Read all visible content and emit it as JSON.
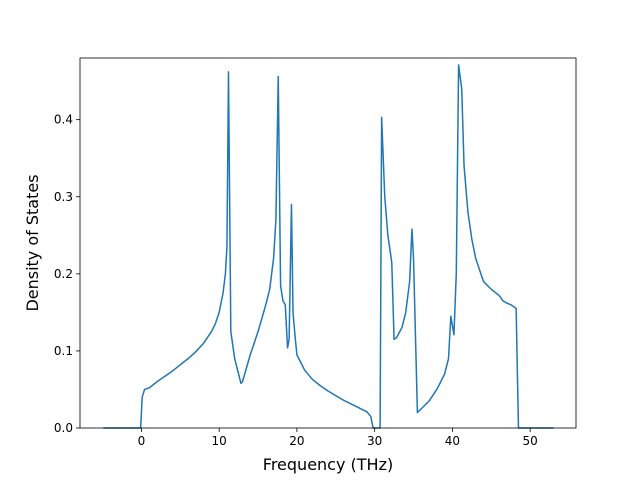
{
  "chart_data": {
    "type": "line",
    "title": "",
    "xlabel": "Frequency (THz)",
    "ylabel": "Density of States",
    "xlim": [
      -7.9,
      55.9
    ],
    "ylim": [
      0,
      0.48
    ],
    "grid": false,
    "legend": "none",
    "line_color": "#1f77b4",
    "x_ticks": [
      0,
      10,
      20,
      30,
      40,
      50
    ],
    "x_tick_labels": [
      "0",
      "10",
      "20",
      "30",
      "40",
      "50"
    ],
    "y_ticks": [
      0.0,
      0.1,
      0.2,
      0.3,
      0.4
    ],
    "y_tick_labels": [
      "0.0",
      "0.1",
      "0.2",
      "0.3",
      "0.4"
    ],
    "series": [
      {
        "x": [
          -4.8,
          -0.1,
          0.1,
          0.4,
          1.0,
          2.0,
          3.0,
          4.0,
          5.0,
          6.0,
          7.0,
          8.0,
          9.0,
          9.5,
          10.0,
          10.5,
          10.8,
          11.0,
          11.2,
          11.5,
          12.0,
          12.5,
          12.8,
          13.0,
          14.0,
          15.0,
          16.0,
          16.5,
          17.0,
          17.3,
          17.6,
          17.9,
          18.2,
          18.5,
          18.8,
          19.0,
          19.3,
          19.5,
          19.8,
          20.0,
          20.5,
          21.0,
          22.0,
          23.0,
          24.0,
          25.0,
          26.0,
          27.0,
          28.0,
          29.0,
          29.5,
          29.8,
          30.7,
          30.9,
          31.3,
          31.7,
          32.2,
          32.5,
          32.8,
          33.5,
          34.0,
          34.5,
          34.8,
          35.0,
          35.3,
          35.5,
          36.0,
          37.0,
          38.0,
          39.0,
          39.5,
          39.8,
          40.2,
          40.5,
          40.8,
          41.2,
          41.5,
          42.0,
          42.5,
          43.0,
          44.0,
          45.0,
          46.0,
          46.5,
          47.0,
          47.5,
          47.8,
          48.2,
          48.5,
          50.0,
          52.9
        ],
        "y": [
          0.0,
          0.0,
          0.04,
          0.05,
          0.052,
          0.06,
          0.067,
          0.074,
          0.082,
          0.09,
          0.099,
          0.11,
          0.125,
          0.135,
          0.15,
          0.175,
          0.2,
          0.235,
          0.462,
          0.125,
          0.09,
          0.07,
          0.058,
          0.06,
          0.095,
          0.125,
          0.16,
          0.18,
          0.22,
          0.27,
          0.456,
          0.185,
          0.165,
          0.16,
          0.104,
          0.115,
          0.29,
          0.15,
          0.115,
          0.095,
          0.085,
          0.075,
          0.063,
          0.055,
          0.048,
          0.042,
          0.036,
          0.031,
          0.026,
          0.021,
          0.015,
          0.0,
          0.0,
          0.403,
          0.3,
          0.25,
          0.215,
          0.115,
          0.117,
          0.13,
          0.15,
          0.19,
          0.258,
          0.22,
          0.1,
          0.02,
          0.025,
          0.035,
          0.05,
          0.07,
          0.09,
          0.145,
          0.121,
          0.2,
          0.471,
          0.44,
          0.34,
          0.28,
          0.245,
          0.22,
          0.19,
          0.18,
          0.172,
          0.165,
          0.162,
          0.16,
          0.158,
          0.155,
          0.0,
          0.0,
          0.0
        ]
      }
    ]
  }
}
